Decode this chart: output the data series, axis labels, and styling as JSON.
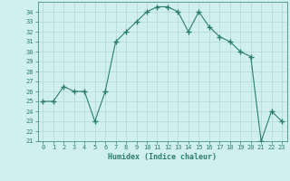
{
  "x": [
    0,
    1,
    2,
    3,
    4,
    5,
    6,
    7,
    8,
    9,
    10,
    11,
    12,
    13,
    14,
    15,
    16,
    17,
    18,
    19,
    20,
    21,
    22,
    23
  ],
  "y": [
    25,
    25,
    26.5,
    26,
    26,
    23,
    26,
    31,
    32,
    33,
    34,
    34.5,
    34.5,
    34,
    32,
    34,
    32.5,
    31.5,
    31,
    30,
    29.5,
    21,
    24,
    23
  ],
  "xlabel": "Humidex (Indice chaleur)",
  "line_color": "#2e7d72",
  "marker": "+",
  "marker_size": 4,
  "bg_color": "#cff0ee",
  "grid_color": "#b8dbd8",
  "ylim": [
    21,
    35
  ],
  "xlim": [
    -0.5,
    23.5
  ],
  "yticks": [
    21,
    22,
    23,
    24,
    25,
    26,
    27,
    28,
    29,
    30,
    31,
    32,
    33,
    34
  ],
  "xticks": [
    0,
    1,
    2,
    3,
    4,
    5,
    6,
    7,
    8,
    9,
    10,
    11,
    12,
    13,
    14,
    15,
    16,
    17,
    18,
    19,
    20,
    21,
    22,
    23
  ]
}
